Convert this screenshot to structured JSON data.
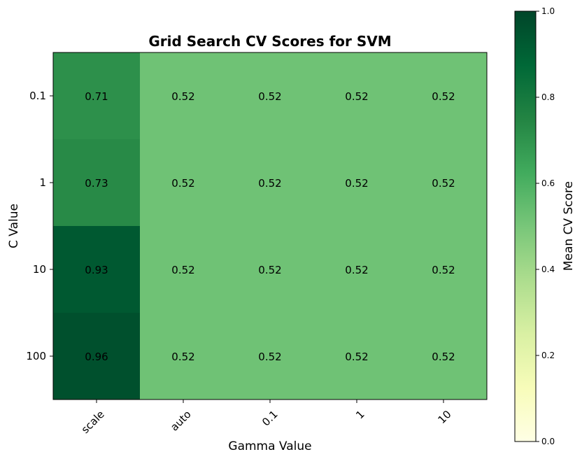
{
  "chart_data": {
    "type": "heatmap",
    "title": "Grid Search CV Scores for SVM",
    "xlabel": "Gamma Value",
    "ylabel": "C Value",
    "x_categories": [
      "scale",
      "auto",
      "0.1",
      "1",
      "10"
    ],
    "y_categories": [
      "0.1",
      "1",
      "10",
      "100"
    ],
    "values": [
      [
        0.71,
        0.52,
        0.52,
        0.52,
        0.52
      ],
      [
        0.73,
        0.52,
        0.52,
        0.52,
        0.52
      ],
      [
        0.93,
        0.52,
        0.52,
        0.52,
        0.52
      ],
      [
        0.96,
        0.52,
        0.52,
        0.52,
        0.52
      ]
    ],
    "value_labels": [
      [
        "0.71",
        "0.52",
        "0.52",
        "0.52",
        "0.52"
      ],
      [
        "0.73",
        "0.52",
        "0.52",
        "0.52",
        "0.52"
      ],
      [
        "0.93",
        "0.52",
        "0.52",
        "0.52",
        "0.52"
      ],
      [
        "0.96",
        "0.52",
        "0.52",
        "0.52",
        "0.52"
      ]
    ],
    "colormap": "YlGn",
    "colorbar": {
      "label": "Mean CV Score",
      "range": [
        0.0,
        1.0
      ],
      "ticks": [
        0.0,
        0.2,
        0.4,
        0.6,
        0.8,
        1.0
      ],
      "tick_labels": [
        "0.0",
        "0.2",
        "0.4",
        "0.6",
        "0.8",
        "1.0"
      ],
      "placement": "right"
    },
    "colors": {
      "ylgn_stops": [
        "#ffffe5",
        "#f7fcb9",
        "#d9f0a3",
        "#addd8e",
        "#78c679",
        "#41ab5d",
        "#238443",
        "#006837",
        "#004529"
      ]
    }
  }
}
